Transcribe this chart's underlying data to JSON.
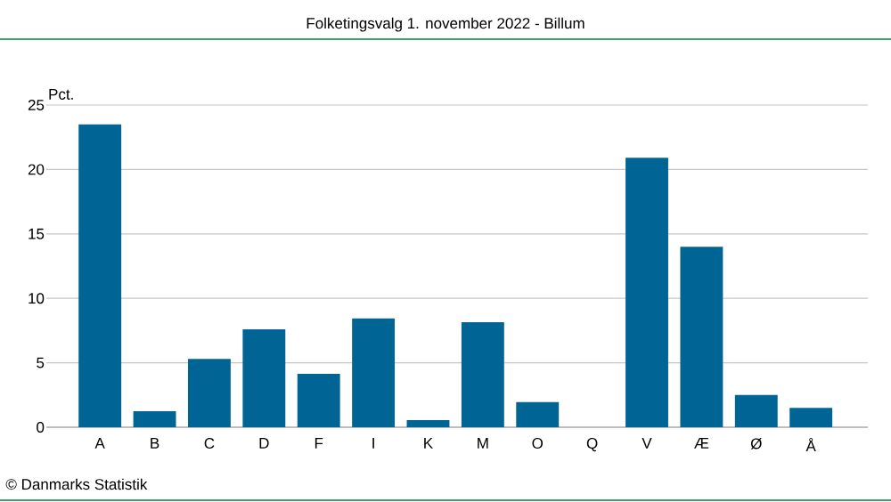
{
  "chart_data": {
    "type": "bar",
    "title": "Folketingsvalg 1. november 2022 - Billum",
    "ylabel": "Pct.",
    "categories": [
      "A",
      "B",
      "C",
      "D",
      "F",
      "I",
      "K",
      "M",
      "O",
      "Q",
      "V",
      "Æ",
      "Ø",
      "Å"
    ],
    "values": [
      23.5,
      1.25,
      5.3,
      7.6,
      4.15,
      8.45,
      0.55,
      8.15,
      1.95,
      0,
      20.9,
      14,
      2.5,
      1.5
    ],
    "color": "#006495",
    "ylim": [
      0,
      25
    ],
    "yticks": [
      0,
      5,
      10,
      15,
      20,
      25
    ],
    "grid": "y",
    "annotations": [
      "© Danmarks Statistik"
    ]
  }
}
